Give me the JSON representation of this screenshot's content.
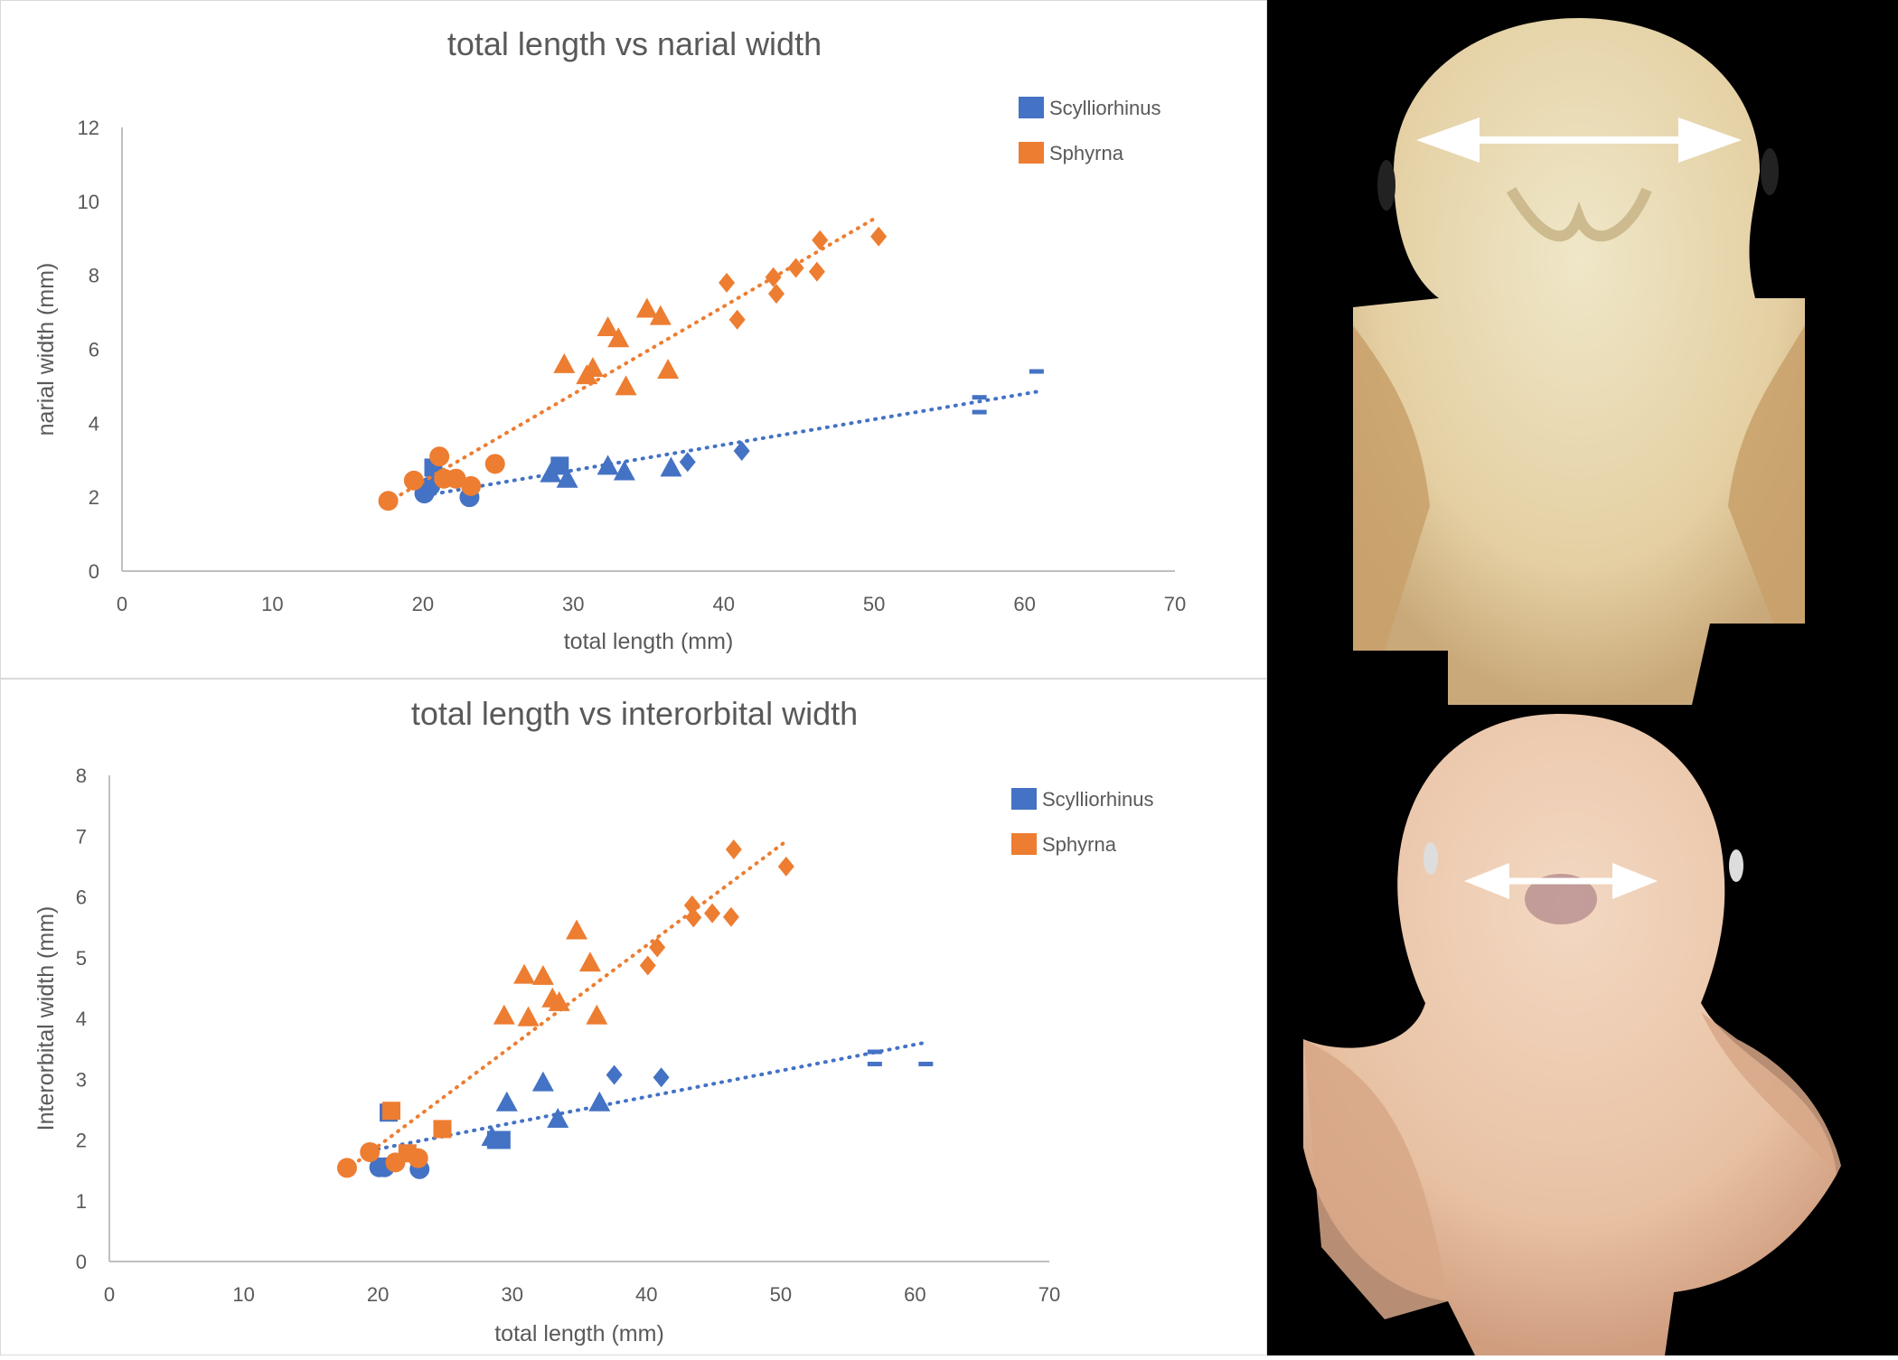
{
  "colors": {
    "scylliorhinus": "#4472C4",
    "sphyrna": "#ED7D31",
    "axis": "#BFBFBF",
    "text": "#595959"
  },
  "chart_data": [
    {
      "type": "scatter",
      "title": "total length vs narial width",
      "xlabel": "total length (mm)",
      "ylabel": "narial width (mm)",
      "xlim": [
        0,
        70
      ],
      "ylim": [
        0,
        12
      ],
      "xticks": [
        0,
        10,
        20,
        30,
        40,
        50,
        60,
        70
      ],
      "yticks": [
        0,
        2,
        4,
        6,
        8,
        10,
        12
      ],
      "grid": false,
      "legend_position": "top-right",
      "legend": [
        "Scylliorhinus",
        "Sphyrna"
      ],
      "series": [
        {
          "name": "Scylliorhinus",
          "color": "#4472C4",
          "trendline": {
            "style": "dotted",
            "x": [
              20.2,
              60.8
            ],
            "y": [
              2.05,
              4.85
            ]
          },
          "points": [
            {
              "x": 20.1,
              "y": 2.1,
              "marker": "circle"
            },
            {
              "x": 20.5,
              "y": 2.3,
              "marker": "circle"
            },
            {
              "x": 23.1,
              "y": 2.0,
              "marker": "circle"
            },
            {
              "x": 20.7,
              "y": 2.8,
              "marker": "square"
            },
            {
              "x": 29.1,
              "y": 2.85,
              "marker": "square"
            },
            {
              "x": 28.5,
              "y": 2.65,
              "marker": "triangle"
            },
            {
              "x": 29.6,
              "y": 2.5,
              "marker": "triangle"
            },
            {
              "x": 32.3,
              "y": 2.85,
              "marker": "triangle"
            },
            {
              "x": 33.4,
              "y": 2.7,
              "marker": "triangle"
            },
            {
              "x": 36.5,
              "y": 2.8,
              "marker": "triangle"
            },
            {
              "x": 37.6,
              "y": 2.95,
              "marker": "diamond"
            },
            {
              "x": 41.2,
              "y": 3.25,
              "marker": "diamond"
            },
            {
              "x": 57.0,
              "y": 4.7,
              "marker": "dash"
            },
            {
              "x": 57.0,
              "y": 4.3,
              "marker": "dash"
            },
            {
              "x": 60.8,
              "y": 5.4,
              "marker": "dash"
            }
          ]
        },
        {
          "name": "Sphyrna",
          "color": "#ED7D31",
          "trendline": {
            "style": "dotted",
            "x": [
              17.6,
              50.3
            ],
            "y": [
              1.85,
              9.6
            ]
          },
          "points": [
            {
              "x": 17.7,
              "y": 1.9,
              "marker": "circle"
            },
            {
              "x": 19.4,
              "y": 2.45,
              "marker": "circle"
            },
            {
              "x": 21.1,
              "y": 3.1,
              "marker": "circle"
            },
            {
              "x": 21.4,
              "y": 2.5,
              "marker": "circle"
            },
            {
              "x": 22.2,
              "y": 2.5,
              "marker": "circle"
            },
            {
              "x": 23.2,
              "y": 2.3,
              "marker": "circle"
            },
            {
              "x": 24.8,
              "y": 2.9,
              "marker": "circle"
            },
            {
              "x": 29.4,
              "y": 5.6,
              "marker": "triangle"
            },
            {
              "x": 30.9,
              "y": 5.3,
              "marker": "triangle"
            },
            {
              "x": 31.3,
              "y": 5.5,
              "marker": "triangle"
            },
            {
              "x": 32.3,
              "y": 6.6,
              "marker": "triangle"
            },
            {
              "x": 33.0,
              "y": 6.3,
              "marker": "triangle"
            },
            {
              "x": 33.5,
              "y": 5.0,
              "marker": "triangle"
            },
            {
              "x": 34.9,
              "y": 7.1,
              "marker": "triangle"
            },
            {
              "x": 35.8,
              "y": 6.9,
              "marker": "triangle"
            },
            {
              "x": 36.3,
              "y": 5.45,
              "marker": "triangle"
            },
            {
              "x": 40.2,
              "y": 7.8,
              "marker": "diamond"
            },
            {
              "x": 40.9,
              "y": 6.8,
              "marker": "diamond"
            },
            {
              "x": 43.3,
              "y": 7.95,
              "marker": "diamond"
            },
            {
              "x": 43.5,
              "y": 7.5,
              "marker": "diamond"
            },
            {
              "x": 44.8,
              "y": 8.2,
              "marker": "diamond"
            },
            {
              "x": 46.2,
              "y": 8.1,
              "marker": "diamond"
            },
            {
              "x": 46.4,
              "y": 8.95,
              "marker": "diamond"
            },
            {
              "x": 50.3,
              "y": 9.05,
              "marker": "diamond"
            }
          ]
        }
      ]
    },
    {
      "type": "scatter",
      "title": "total length vs interorbital width",
      "xlabel": "total length (mm)",
      "ylabel": "Interorbital width (mm)",
      "xlim": [
        0,
        70
      ],
      "ylim": [
        0,
        8
      ],
      "xticks": [
        0,
        10,
        20,
        30,
        40,
        50,
        60,
        70
      ],
      "yticks": [
        0,
        1,
        2,
        3,
        4,
        5,
        6,
        7,
        8
      ],
      "grid": false,
      "legend_position": "top-right",
      "legend": [
        "Scylliorhinus",
        "Sphyrna"
      ],
      "series": [
        {
          "name": "Scylliorhinus",
          "color": "#4472C4",
          "trendline": {
            "style": "dotted",
            "x": [
              20.0,
              60.7
            ],
            "y": [
              1.85,
              3.6
            ]
          },
          "points": [
            {
              "x": 20.1,
              "y": 1.55,
              "marker": "circle"
            },
            {
              "x": 20.5,
              "y": 1.55,
              "marker": "circle"
            },
            {
              "x": 23.1,
              "y": 1.52,
              "marker": "circle"
            },
            {
              "x": 20.8,
              "y": 2.45,
              "marker": "square"
            },
            {
              "x": 28.8,
              "y": 2.0,
              "marker": "square"
            },
            {
              "x": 29.2,
              "y": 2.0,
              "marker": "square"
            },
            {
              "x": 28.5,
              "y": 2.05,
              "marker": "triangle"
            },
            {
              "x": 29.6,
              "y": 2.62,
              "marker": "triangle"
            },
            {
              "x": 32.3,
              "y": 2.95,
              "marker": "triangle"
            },
            {
              "x": 33.4,
              "y": 2.35,
              "marker": "triangle"
            },
            {
              "x": 36.5,
              "y": 2.62,
              "marker": "triangle"
            },
            {
              "x": 37.6,
              "y": 3.07,
              "marker": "diamond"
            },
            {
              "x": 41.1,
              "y": 3.03,
              "marker": "diamond"
            },
            {
              "x": 57.0,
              "y": 3.45,
              "marker": "dash"
            },
            {
              "x": 57.0,
              "y": 3.25,
              "marker": "dash"
            },
            {
              "x": 60.8,
              "y": 3.25,
              "marker": "dash"
            }
          ]
        },
        {
          "name": "Sphyrna",
          "color": "#ED7D31",
          "trendline": {
            "style": "dotted",
            "x": [
              17.6,
              50.3
            ],
            "y": [
              1.5,
              6.9
            ]
          },
          "points": [
            {
              "x": 17.7,
              "y": 1.54,
              "marker": "circle"
            },
            {
              "x": 19.4,
              "y": 1.8,
              "marker": "circle"
            },
            {
              "x": 21.3,
              "y": 1.63,
              "marker": "circle"
            },
            {
              "x": 23.0,
              "y": 1.7,
              "marker": "circle"
            },
            {
              "x": 21.0,
              "y": 2.48,
              "marker": "square"
            },
            {
              "x": 22.2,
              "y": 1.78,
              "marker": "square"
            },
            {
              "x": 24.8,
              "y": 2.18,
              "marker": "square"
            },
            {
              "x": 29.4,
              "y": 4.05,
              "marker": "triangle"
            },
            {
              "x": 30.9,
              "y": 4.72,
              "marker": "triangle"
            },
            {
              "x": 31.2,
              "y": 4.02,
              "marker": "triangle"
            },
            {
              "x": 32.3,
              "y": 4.7,
              "marker": "triangle"
            },
            {
              "x": 33.0,
              "y": 4.33,
              "marker": "triangle"
            },
            {
              "x": 33.5,
              "y": 4.27,
              "marker": "triangle"
            },
            {
              "x": 34.8,
              "y": 5.45,
              "marker": "triangle"
            },
            {
              "x": 35.8,
              "y": 4.92,
              "marker": "triangle"
            },
            {
              "x": 36.3,
              "y": 4.05,
              "marker": "triangle"
            },
            {
              "x": 40.1,
              "y": 4.87,
              "marker": "diamond"
            },
            {
              "x": 40.8,
              "y": 5.17,
              "marker": "diamond"
            },
            {
              "x": 43.4,
              "y": 5.86,
              "marker": "diamond"
            },
            {
              "x": 43.5,
              "y": 5.66,
              "marker": "diamond"
            },
            {
              "x": 44.9,
              "y": 5.73,
              "marker": "diamond"
            },
            {
              "x": 46.3,
              "y": 5.67,
              "marker": "diamond"
            },
            {
              "x": 46.5,
              "y": 6.78,
              "marker": "diamond"
            },
            {
              "x": 50.4,
              "y": 6.5,
              "marker": "diamond"
            }
          ]
        }
      ]
    }
  ],
  "photos": [
    {
      "label": "Scylliorhinus embryo head, ventral view",
      "measurement": "narial width arrow"
    },
    {
      "label": "Sphyrna embryo head, dorsal view",
      "measurement": "interorbital width arrow"
    }
  ]
}
